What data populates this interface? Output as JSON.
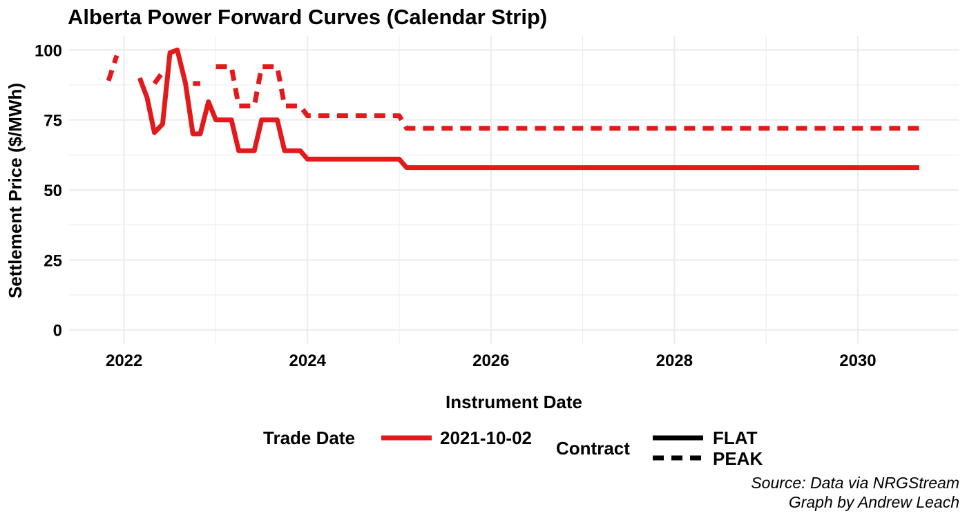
{
  "chart_data": {
    "type": "line",
    "title": "Alberta Power Forward Curves (Calendar Strip)",
    "xlabel": "Instrument Date",
    "ylabel": "Settlement Price ($/MWh)",
    "xlim": [
      2021.4,
      2031.1
    ],
    "ylim": [
      -5,
      105
    ],
    "x_ticks": [
      2022,
      2024,
      2026,
      2028,
      2030
    ],
    "x_tick_labels": [
      "2022",
      "2024",
      "2026",
      "2028",
      "2030"
    ],
    "y_ticks": [
      0,
      25,
      50,
      75,
      100
    ],
    "y_tick_labels": [
      "0",
      "25",
      "50",
      "75",
      "100"
    ],
    "grid": true,
    "legend_placement": "bottom",
    "series": [
      {
        "trade_date": "2021-10-02",
        "contract": "FLAT",
        "color": "#e31a1c",
        "line_style": "solid",
        "segments": [
          {
            "x": [
              2022.17,
              2022.25,
              2022.33,
              2022.42,
              2022.5,
              2022.58,
              2022.67,
              2022.75,
              2022.83,
              2022.92,
              2023.0,
              2023.08,
              2023.17,
              2023.25,
              2023.33,
              2023.42,
              2023.5,
              2023.58,
              2023.67,
              2023.75,
              2023.83,
              2023.92,
              2024.0,
              2024.92,
              2025.0,
              2025.08,
              2030.67
            ],
            "y": [
              90,
              83,
              70.5,
              73.5,
              99,
              100,
              88,
              70,
              70,
              81.5,
              75,
              75,
              75,
              64,
              64,
              64,
              75,
              75,
              75,
              64,
              64,
              64,
              61,
              61,
              61,
              58,
              58
            ]
          }
        ]
      },
      {
        "trade_date": "2021-10-02",
        "contract": "PEAK",
        "color": "#e31a1c",
        "line_style": "dashed",
        "segments": [
          {
            "x": [
              2021.83,
              2021.92
            ],
            "y": [
              89,
              98
            ]
          },
          {
            "x": [
              2022.33,
              2022.42
            ],
            "y": [
              88,
              92
            ]
          },
          {
            "x": [
              2022.75,
              2022.83
            ],
            "y": [
              88,
              88
            ]
          },
          {
            "x": [
              2023.0,
              2023.08,
              2023.17,
              2023.25,
              2023.33,
              2023.42,
              2023.5,
              2023.58,
              2023.67,
              2023.75,
              2023.83,
              2023.92,
              2024.0,
              2024.92,
              2025.0,
              2025.08,
              2030.67
            ],
            "y": [
              94,
              94,
              94,
              80,
              80,
              80,
              94,
              94,
              94,
              80,
              80,
              80,
              76.5,
              76.5,
              76.5,
              72,
              72
            ]
          }
        ]
      }
    ]
  },
  "legend": {
    "trade_date_title": "Trade Date",
    "trade_date_label": "2021-10-02",
    "trade_date_color": "#e31a1c",
    "contract_title": "Contract",
    "contract_items": [
      {
        "label": "FLAT",
        "line_style": "solid"
      },
      {
        "label": "PEAK",
        "line_style": "dashed"
      }
    ]
  },
  "caption": {
    "line1": "Source: Data via NRGStream",
    "line2": "Graph by Andrew Leach"
  },
  "colors": {
    "grid": "#ebebeb",
    "series": "#e31a1c",
    "legend_key": "#000000"
  }
}
